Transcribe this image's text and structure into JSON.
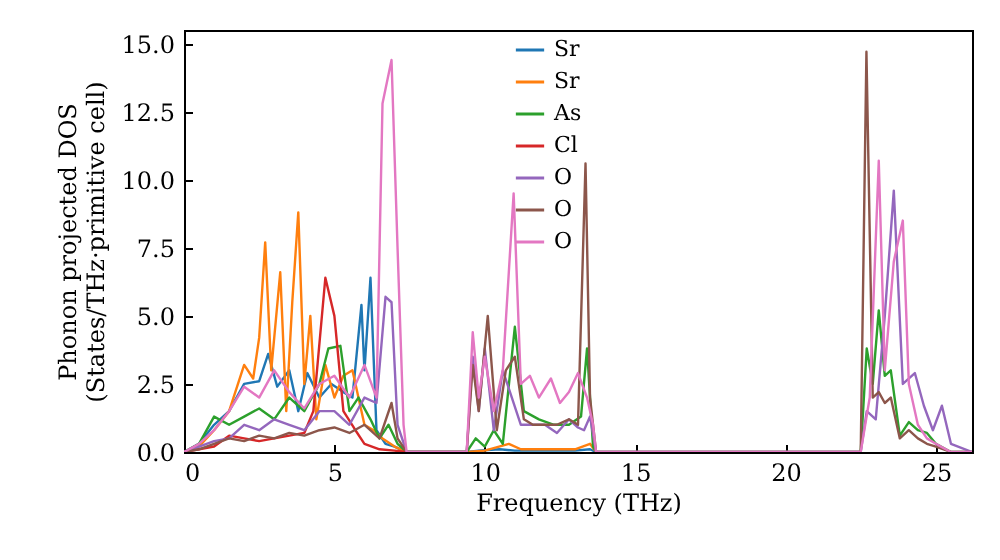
{
  "chart_data": {
    "type": "line",
    "xlabel": "Frequency (THz)",
    "ylabel": "Phonon projected DOS\n(States/THz·primitive cell)",
    "xlim": [
      0,
      26.2
    ],
    "xticks": [
      0,
      5,
      10,
      15,
      20,
      25
    ],
    "ylim": [
      0,
      15.5
    ],
    "yticks": [
      {
        "value": 0,
        "label": "0.0"
      },
      {
        "value": 2.5,
        "label": "2.5"
      },
      {
        "value": 5,
        "label": "5.0"
      },
      {
        "value": 7.5,
        "label": "7.5"
      },
      {
        "value": 10,
        "label": "10.0"
      },
      {
        "value": 12.5,
        "label": "12.5"
      },
      {
        "value": 15,
        "label": "15.0"
      }
    ],
    "grid": false,
    "legend": "top",
    "marker": "none",
    "line_style": "solid",
    "series": [
      {
        "name": "Sr",
        "color": "#1f77b4",
        "x": [
          0,
          0.5,
          1,
          1.5,
          2,
          2.5,
          2.8,
          3.1,
          3.5,
          3.8,
          4.1,
          4.5,
          4.9,
          5.3,
          5.6,
          5.9,
          6.0,
          6.2,
          6.4,
          6.7,
          7.0,
          7.4,
          9.4,
          9.8,
          10.5,
          11,
          12,
          13,
          13.5,
          13.7
        ],
        "values": [
          0,
          0.3,
          1.0,
          1.5,
          2.5,
          2.6,
          3.6,
          2.4,
          3.0,
          1.5,
          2.9,
          2.0,
          2.5,
          2.2,
          2.0,
          5.4,
          3.0,
          6.4,
          0.8,
          0.3,
          0.2,
          0,
          0,
          0.05,
          0.1,
          0.05,
          0.05,
          0.05,
          0.1,
          0
        ]
      },
      {
        "name": "Sr",
        "color": "#ff7f0e",
        "x": [
          0,
          0.5,
          1,
          1.5,
          2,
          2.3,
          2.5,
          2.7,
          2.9,
          3.2,
          3.4,
          3.6,
          3.8,
          4.0,
          4.2,
          4.4,
          4.7,
          5.0,
          5.3,
          5.6,
          6.0,
          6.3,
          6.6,
          7.0,
          7.4,
          9.4,
          10,
          10.8,
          11.2,
          12,
          13,
          13.5,
          13.7
        ],
        "values": [
          0,
          0.2,
          0.8,
          1.5,
          3.2,
          2.7,
          4.2,
          7.7,
          3.0,
          6.6,
          1.5,
          5.5,
          8.8,
          2.5,
          5.0,
          1.2,
          3.2,
          2.0,
          2.8,
          3.0,
          1.0,
          0.8,
          0.5,
          0.2,
          0,
          0,
          0.05,
          0.3,
          0.1,
          0.1,
          0.1,
          0.3,
          0
        ]
      },
      {
        "name": "As",
        "color": "#2ca02c",
        "x": [
          0,
          0.5,
          1,
          1.5,
          2,
          2.5,
          3,
          3.5,
          4,
          4.5,
          4.8,
          5.2,
          5.5,
          5.8,
          6.2,
          6.5,
          6.8,
          7.1,
          7.4,
          9.4,
          9.7,
          10,
          10.3,
          10.6,
          11.0,
          11.3,
          11.8,
          12.3,
          12.8,
          13.2,
          13.4,
          13.6,
          13.7,
          22.5,
          22.7,
          22.9,
          23.1,
          23.3,
          23.5,
          23.8,
          24.1,
          24.4,
          24.7,
          25.0,
          25.5,
          26.2
        ],
        "values": [
          0,
          0.3,
          1.3,
          1.0,
          1.3,
          1.6,
          1.2,
          2.0,
          1.5,
          2.5,
          3.8,
          3.9,
          1.5,
          2.0,
          1.2,
          0.5,
          1.0,
          0.3,
          0,
          0,
          0.5,
          0.2,
          0.8,
          0.3,
          4.6,
          1.5,
          1.2,
          1.0,
          1.0,
          1.3,
          3.8,
          0.2,
          0,
          0,
          3.8,
          2.5,
          5.2,
          2.8,
          3.0,
          0.6,
          1.1,
          0.8,
          0.7,
          0.3,
          0,
          0
        ]
      },
      {
        "name": "Cl",
        "color": "#d62728",
        "x": [
          0,
          0.5,
          1,
          1.5,
          2,
          2.5,
          3,
          3.5,
          4,
          4.3,
          4.7,
          5.0,
          5.3,
          5.7,
          6.0,
          6.5,
          7.0,
          7.4
        ],
        "values": [
          0,
          0.1,
          0.2,
          0.6,
          0.5,
          0.4,
          0.5,
          0.6,
          0.7,
          1.5,
          6.4,
          5.0,
          1.5,
          0.8,
          0.3,
          0.1,
          0.05,
          0
        ]
      },
      {
        "name": "O",
        "color": "#9467bd",
        "x": [
          0,
          0.5,
          1,
          1.5,
          2,
          2.5,
          3,
          3.5,
          4,
          4.5,
          5,
          5.5,
          6,
          6.4,
          6.7,
          6.9,
          7.1,
          7.4,
          9.4,
          9.6,
          9.8,
          10.0,
          10.3,
          10.6,
          10.9,
          11.2,
          11.6,
          12.0,
          12.4,
          12.8,
          13.1,
          13.3,
          13.5,
          13.7,
          22.5,
          22.7,
          23.0,
          23.3,
          23.6,
          23.9,
          24.3,
          24.6,
          24.9,
          25.2,
          25.5,
          26.2
        ],
        "values": [
          0,
          0.2,
          0.4,
          0.5,
          1.0,
          0.8,
          1.2,
          1.0,
          0.8,
          1.5,
          1.5,
          1.0,
          2.0,
          1.8,
          5.7,
          5.5,
          1.0,
          0,
          0,
          3.5,
          1.5,
          3.8,
          0.8,
          3.0,
          2.0,
          1.0,
          1.0,
          1.0,
          0.7,
          1.2,
          0.9,
          0.8,
          1.3,
          0,
          0,
          1.5,
          1.2,
          5.0,
          9.6,
          2.5,
          2.9,
          1.7,
          0.8,
          1.7,
          0.3,
          0
        ]
      },
      {
        "name": "O",
        "color": "#8c564b",
        "x": [
          0,
          0.5,
          1,
          1.5,
          2,
          2.5,
          3,
          3.5,
          4,
          4.5,
          5,
          5.5,
          6,
          6.5,
          6.9,
          7.1,
          7.4,
          9.4,
          9.6,
          9.8,
          10.1,
          10.4,
          10.7,
          11.0,
          11.3,
          11.6,
          12.0,
          12.4,
          12.8,
          13.1,
          13.35,
          13.5,
          13.7,
          22.5,
          22.69,
          22.9,
          23.1,
          23.3,
          23.5,
          23.8,
          24.1,
          24.4,
          24.7,
          25.0,
          25.5,
          26.2
        ],
        "values": [
          0,
          0.1,
          0.3,
          0.5,
          0.4,
          0.6,
          0.5,
          0.7,
          0.6,
          0.8,
          0.9,
          0.7,
          1.0,
          0.5,
          1.8,
          0.5,
          0,
          0,
          3.2,
          1.5,
          5.0,
          0.8,
          3.0,
          3.5,
          1.2,
          1.0,
          1.0,
          1.0,
          1.2,
          1.0,
          10.6,
          2.0,
          0,
          0,
          14.7,
          2.0,
          2.2,
          1.8,
          2.0,
          0.5,
          0.8,
          0.5,
          0.3,
          0.2,
          0,
          0
        ]
      },
      {
        "name": "O",
        "color": "#e377c2",
        "x": [
          0,
          0.5,
          1,
          1.5,
          2,
          2.5,
          3,
          3.5,
          4,
          4.5,
          5,
          5.5,
          6,
          6.4,
          6.6,
          6.9,
          7.1,
          7.3,
          7.4,
          9.4,
          9.6,
          9.8,
          10.0,
          10.3,
          10.6,
          10.96,
          11.2,
          11.5,
          11.8,
          12.2,
          12.5,
          12.8,
          13.1,
          13.4,
          13.6,
          13.7,
          22.5,
          22.8,
          23.1,
          23.3,
          23.6,
          23.9,
          24.1,
          24.4,
          24.7,
          25.0,
          25.5,
          26.2
        ],
        "values": [
          0,
          0.3,
          0.8,
          1.5,
          2.4,
          2.0,
          3.0,
          2.2,
          1.6,
          2.5,
          2.8,
          2.0,
          3.2,
          2.0,
          12.8,
          14.4,
          7.5,
          1.0,
          0,
          0,
          4.4,
          2.0,
          3.5,
          1.5,
          3.0,
          9.5,
          2.5,
          2.8,
          2.0,
          2.7,
          1.8,
          2.2,
          2.9,
          2.0,
          1.0,
          0,
          0,
          2.0,
          10.7,
          3.0,
          7.0,
          8.5,
          2.5,
          1.0,
          0.5,
          0.3,
          0,
          0
        ]
      }
    ]
  }
}
